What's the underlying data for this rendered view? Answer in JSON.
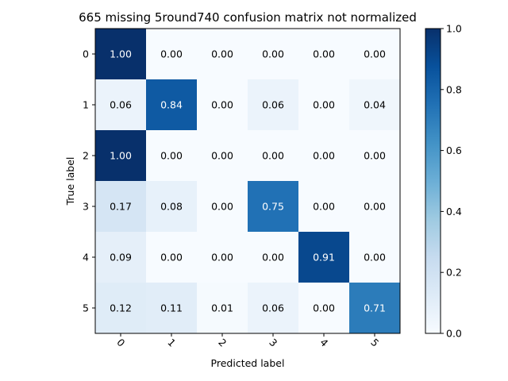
{
  "chart_data": {
    "type": "heatmap",
    "title": "665 missing 5round740 confusion matrix not normalized",
    "xlabel": "Predicted label",
    "ylabel": "True label",
    "x_categories": [
      "0",
      "1",
      "2",
      "3",
      "4",
      "5"
    ],
    "y_categories": [
      "0",
      "1",
      "2",
      "3",
      "4",
      "5"
    ],
    "values": [
      [
        1.0,
        0.0,
        0.0,
        0.0,
        0.0,
        0.0
      ],
      [
        0.06,
        0.84,
        0.0,
        0.06,
        0.0,
        0.04
      ],
      [
        1.0,
        0.0,
        0.0,
        0.0,
        0.0,
        0.0
      ],
      [
        0.17,
        0.08,
        0.0,
        0.75,
        0.0,
        0.0
      ],
      [
        0.09,
        0.0,
        0.0,
        0.0,
        0.91,
        0.0
      ],
      [
        0.12,
        0.11,
        0.01,
        0.06,
        0.0,
        0.71
      ]
    ],
    "value_labels": [
      [
        "1.00",
        "0.00",
        "0.00",
        "0.00",
        "0.00",
        "0.00"
      ],
      [
        "0.06",
        "0.84",
        "0.00",
        "0.06",
        "0.00",
        "0.04"
      ],
      [
        "1.00",
        "0.00",
        "0.00",
        "0.00",
        "0.00",
        "0.00"
      ],
      [
        "0.17",
        "0.08",
        "0.00",
        "0.75",
        "0.00",
        "0.00"
      ],
      [
        "0.09",
        "0.00",
        "0.00",
        "0.00",
        "0.91",
        "0.00"
      ],
      [
        "0.12",
        "0.11",
        "0.01",
        "0.06",
        "0.00",
        "0.71"
      ]
    ],
    "colormap": "Blues",
    "color_range": [
      0.0,
      1.0
    ],
    "colorbar_ticks": [
      "0.0",
      "0.2",
      "0.4",
      "0.6",
      "0.8",
      "1.0"
    ],
    "grid": false,
    "legend": "colorbar-right"
  }
}
